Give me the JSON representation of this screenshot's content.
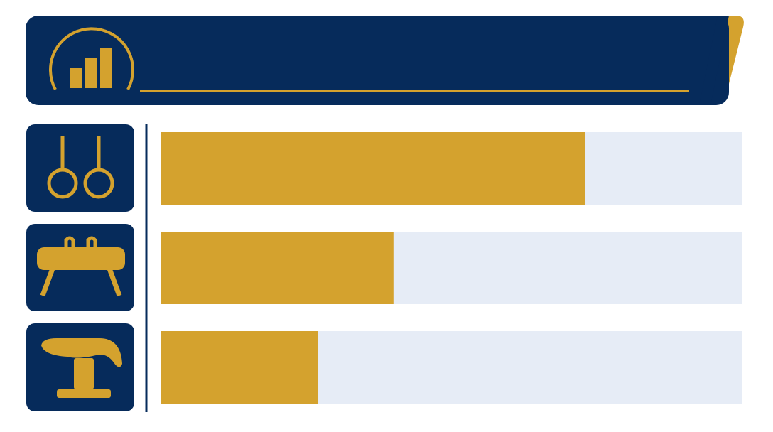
{
  "chart_data": {
    "type": "bar",
    "orientation": "horizontal",
    "categories": [
      null,
      null,
      null
    ],
    "values": [
      73,
      40,
      27
    ],
    "xlim": [
      0,
      100
    ],
    "color": "#d4a22e",
    "track_color": "#e6ecf6"
  }
}
